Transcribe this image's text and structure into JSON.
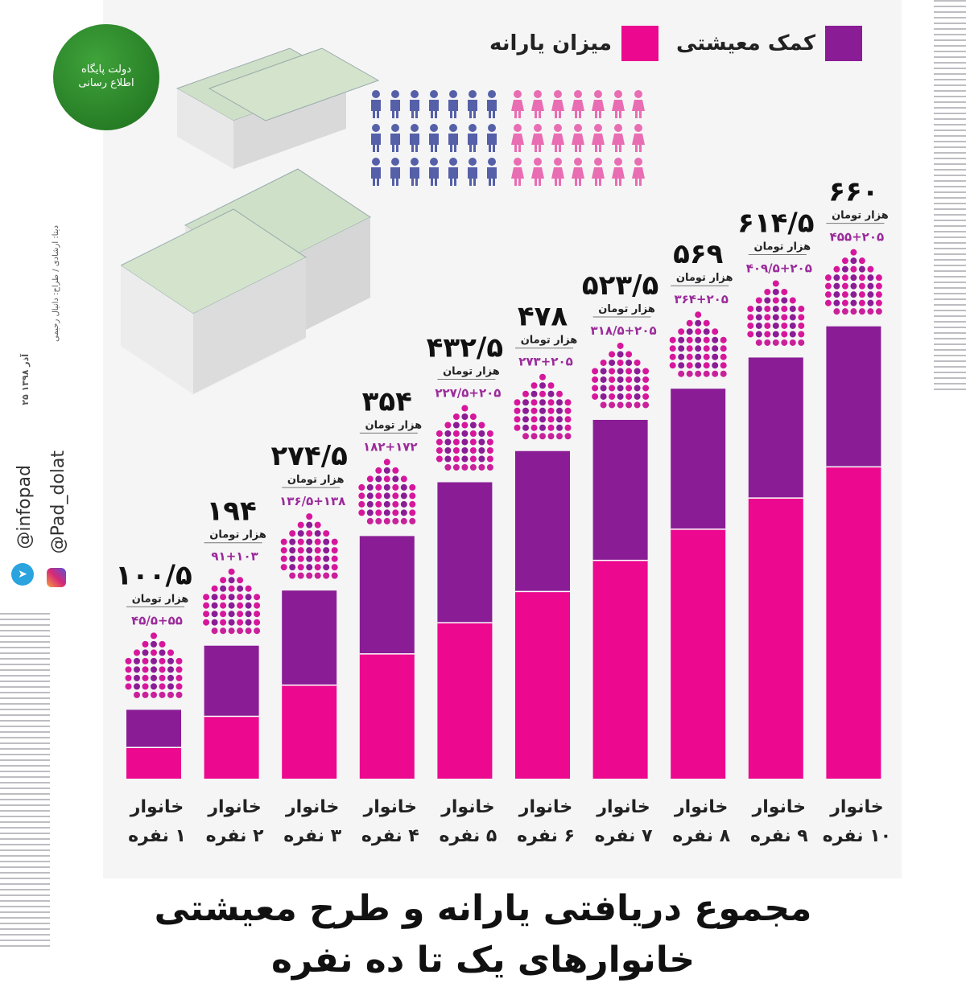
{
  "colors": {
    "subsidy": "#ec088f",
    "livelihood": "#8a1d95",
    "panel": "#f5f5f6",
    "men": "#5560a8",
    "women": "#e96db3"
  },
  "legend": {
    "livelihood": "کمک معیشتی",
    "subsidy": "میزان یارانه"
  },
  "logo_text": "دولت پایگاه اطلاع رسانی",
  "social": {
    "instagram": "@Pad_dolat",
    "telegram": "@infopad"
  },
  "side_credit": "دیتا: ارشادی / طراح: دانیال رحیمی",
  "side_date": "۲۵ آذر ۱۳۹۸",
  "title_line1": "مجموع دریافتی یارانه و طرح معیشتی",
  "title_line2": "خانوارهای یک تا ده نفره",
  "unit_label": "هزار تومان",
  "chart_data": {
    "type": "bar",
    "stacked": true,
    "categories": [
      "خانوار ۱ نفره",
      "خانوار ۲ نفره",
      "خانوار ۳ نفره",
      "خانوار ۴ نفره",
      "خانوار ۵ نفره",
      "خانوار ۶ نفره",
      "خانوار ۷ نفره",
      "خانوار ۸ نفره",
      "خانوار ۹ نفره",
      "خانوار ۱۰ نفره"
    ],
    "series": [
      {
        "name": "میزان یارانه",
        "values": [
          45.5,
          91,
          136.5,
          182,
          227.5,
          273,
          318.5,
          364,
          409.5,
          455
        ]
      },
      {
        "name": "کمک معیشتی",
        "values": [
          55,
          103,
          138,
          172,
          205,
          205,
          205,
          205,
          205,
          205
        ]
      }
    ],
    "totals_text": [
      "۱۰۰/۵",
      "۱۹۴",
      "۲۷۴/۵",
      "۳۵۴",
      "۴۳۲/۵",
      "۴۷۸",
      "۵۲۳/۵",
      "۵۶۹",
      "۶۱۴/۵",
      "۶۶۰"
    ],
    "breakdown_text": [
      "۴۵/۵+۵۵",
      "۹۱+۱۰۳",
      "۱۳۶/۵+۱۳۸",
      "۱۸۲+۱۷۲",
      "۲۲۷/۵+۲۰۵",
      "۲۷۳+۲۰۵",
      "۳۱۸/۵+۲۰۵",
      "۳۶۴+۲۰۵",
      "۴۰۹/۵+۲۰۵",
      "۴۵۵+۲۰۵"
    ],
    "ylim": [
      0,
      700
    ],
    "legend_position": "top-right"
  }
}
